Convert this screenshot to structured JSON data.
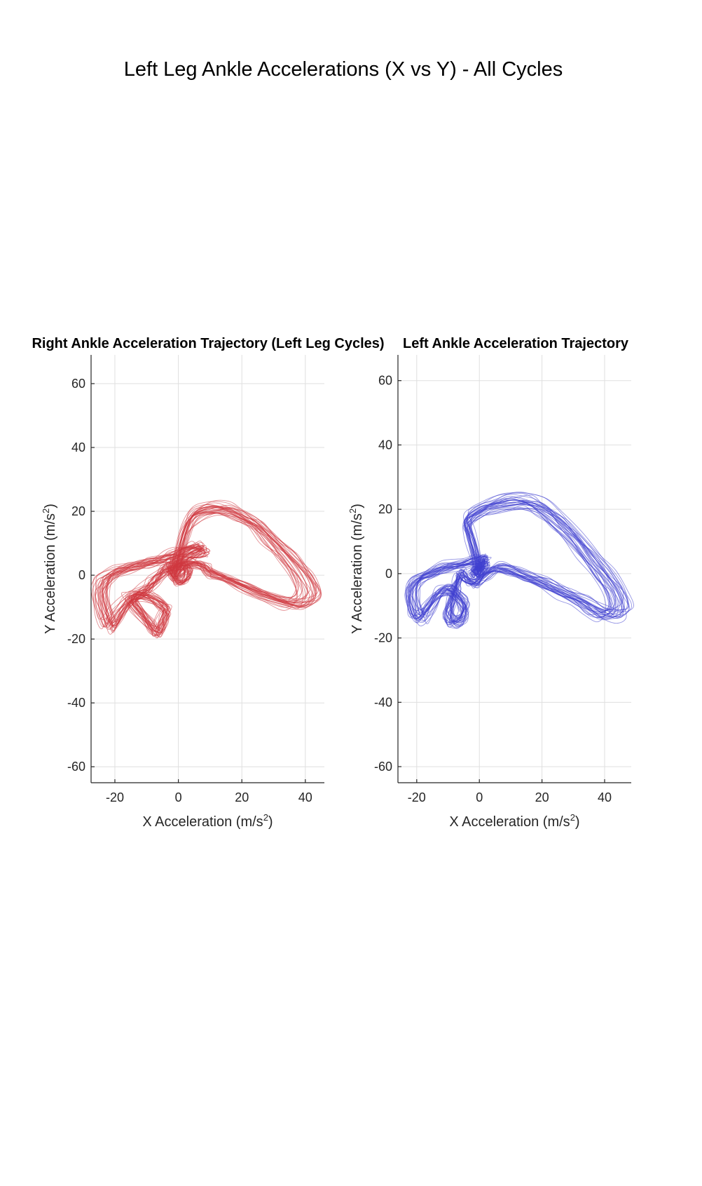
{
  "figure_title": "Left Leg Ankle Accelerations (X vs Y) - All Cycles",
  "chart_data": [
    {
      "type": "line",
      "title": "Right Ankle Acceleration Trajectory (Left Leg Cycles)",
      "xlabel": "X Acceleration (m/s2)",
      "xlabel_parts": [
        "X Acceleration (m/s",
        "2",
        ")"
      ],
      "ylabel": "Y Acceleration (m/s2)",
      "ylabel_parts": [
        "Y Acceleration (m/s",
        "2",
        ")"
      ],
      "xlim": [
        -27.5,
        46
      ],
      "ylim": [
        -65,
        69
      ],
      "xticks": [
        -20,
        0,
        20,
        40
      ],
      "yticks": [
        -60,
        -40,
        -20,
        0,
        20,
        40,
        60
      ],
      "xtick_labels": [
        "-20",
        "0",
        "20",
        "40"
      ],
      "ytick_labels": [
        "-60",
        "-40",
        "-20",
        "0",
        "20",
        "40",
        "60"
      ],
      "grid": true,
      "color": "#d0393f",
      "cycle_count": 30,
      "representative_cycle": {
        "x": [
          -1,
          2,
          5,
          10,
          15,
          20,
          25,
          30,
          35,
          40,
          42,
          38,
          30,
          22,
          15,
          10,
          8,
          4,
          0,
          -4,
          -6,
          -8,
          -10,
          -13,
          -15,
          -12,
          -9,
          -7,
          -6,
          -5,
          -4,
          -6,
          -9,
          -13,
          -16,
          -19,
          -22,
          -24,
          -25,
          -24,
          -22,
          -18,
          -14,
          -10,
          -6,
          -3,
          0,
          2,
          5,
          7,
          8,
          6,
          3,
          1,
          -1,
          -2,
          -3,
          -2,
          0,
          2,
          3,
          2,
          0,
          -1
        ],
        "y": [
          2,
          14,
          19,
          21,
          21,
          19,
          16,
          11,
          6,
          0,
          -6,
          -9,
          -7,
          -4,
          -1,
          1,
          3,
          4,
          3,
          2,
          0,
          -2,
          -4,
          -6,
          -8,
          -12,
          -16,
          -18,
          -17,
          -14,
          -11,
          -9,
          -7,
          -6,
          -8,
          -12,
          -16,
          -12,
          -6,
          -2,
          0,
          2,
          3,
          4,
          5,
          6,
          7,
          8,
          9,
          9,
          8,
          7,
          6,
          5,
          4,
          3,
          2,
          0,
          -2,
          -1,
          1,
          3,
          2,
          0
        ]
      }
    },
    {
      "type": "line",
      "title": "Left Ankle Acceleration Trajectory",
      "xlabel": "X Acceleration (m/s2)",
      "xlabel_parts": [
        "X Acceleration (m/s",
        "2",
        ")"
      ],
      "ylabel": "Y Acceleration (m/s2)",
      "ylabel_parts": [
        "Y Acceleration (m/s",
        "2",
        ")"
      ],
      "xlim": [
        -26,
        48.5
      ],
      "ylim": [
        -65,
        68
      ],
      "xticks": [
        -20,
        0,
        20,
        40
      ],
      "yticks": [
        -60,
        -40,
        -20,
        0,
        20,
        40,
        60
      ],
      "xtick_labels": [
        "-20",
        "0",
        "20",
        "40"
      ],
      "ytick_labels": [
        "-60",
        "-40",
        "-20",
        "0",
        "20",
        "40",
        "60"
      ],
      "grid": true,
      "color": "#3f3fd0",
      "cycle_count": 30,
      "representative_cycle": {
        "x": [
          -1,
          -3,
          -4,
          0,
          5,
          10,
          15,
          20,
          25,
          30,
          35,
          40,
          44,
          45,
          42,
          38,
          33,
          27,
          21,
          15,
          10,
          6,
          2,
          0,
          -2,
          -4,
          -6,
          -7,
          -8,
          -9,
          -10,
          -9,
          -7,
          -5,
          -5,
          -7,
          -10,
          -13,
          -16,
          -19,
          -21,
          -22,
          -20,
          -16,
          -11,
          -6,
          -2,
          1,
          2,
          1,
          -1,
          -2,
          0,
          1,
          0,
          -1
        ],
        "y": [
          4,
          12,
          17,
          20,
          22,
          23,
          23,
          21,
          17,
          12,
          6,
          0,
          -6,
          -11,
          -13,
          -12,
          -9,
          -6,
          -3,
          -1,
          1,
          2,
          0,
          -2,
          -3,
          -2,
          0,
          -2,
          -5,
          -9,
          -13,
          -15,
          -15,
          -13,
          -10,
          -7,
          -5,
          -6,
          -10,
          -14,
          -12,
          -6,
          -2,
          0,
          2,
          3,
          4,
          5,
          4,
          3,
          2,
          1,
          0,
          3,
          2,
          0
        ]
      }
    }
  ]
}
